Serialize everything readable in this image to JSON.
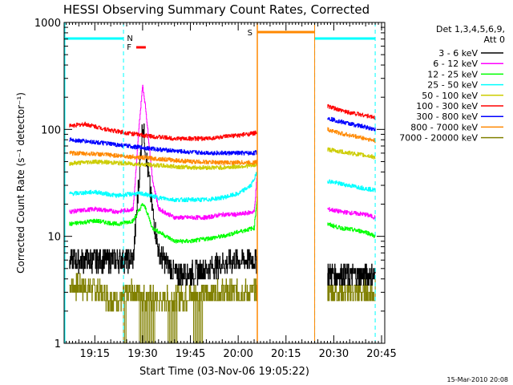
{
  "chart_data": {
    "type": "line",
    "title": "HESSI Observing Summary Count Rates, Corrected",
    "xlabel": "Start Time (03-Nov-06 19:05:22)",
    "ylabel": "Corrected Count Rate (s⁻¹ detector⁻¹)",
    "footer": "15-Mar-2010 20:08",
    "y_scale": "log",
    "ylim": [
      1,
      1000
    ],
    "xlim": [
      "19:05:22",
      "20:46:00"
    ],
    "x_ticks": [
      "19:15",
      "19:30",
      "19:45",
      "20:00",
      "20:15",
      "20:30",
      "20:45"
    ],
    "y_ticks": [
      "1",
      "10",
      "100",
      "1000"
    ],
    "legend": {
      "title_line1": "Det 1,3,4,5,6,9,",
      "title_line2": "Att 0",
      "placement": "right"
    },
    "series": [
      {
        "name": "3 - 6 keV",
        "color": "#000000",
        "segments": [
          {
            "x": [
              "19:07",
              "19:15",
              "19:22",
              "19:27",
              "19:29",
              "19:30",
              "19:31",
              "19:33",
              "19:35",
              "19:40",
              "19:45",
              "19:50",
              "19:55",
              "20:00",
              "20:06"
            ],
            "y": [
              6,
              6,
              6,
              6,
              40,
              115,
              60,
              18,
              7,
              4.5,
              4.5,
              5,
              5.5,
              6,
              6
            ]
          },
          {
            "x": [
              "20:28",
              "20:35",
              "20:40",
              "20:43"
            ],
            "y": [
              4.5,
              4.3,
              4.3,
              4.5
            ]
          }
        ]
      },
      {
        "name": "6 - 12 keV",
        "color": "#ff00ff",
        "segments": [
          {
            "x": [
              "19:07",
              "19:15",
              "19:22",
              "19:27",
              "19:29",
              "19:30",
              "19:31",
              "19:33",
              "19:35",
              "19:40",
              "19:45",
              "19:50",
              "19:55",
              "20:00",
              "20:05",
              "20:06"
            ],
            "y": [
              17,
              18,
              17,
              18,
              120,
              260,
              150,
              35,
              18,
              15,
              15,
              15,
              16,
              16,
              17,
              40
            ]
          },
          {
            "x": [
              "20:28",
              "20:32",
              "20:40",
              "20:43"
            ],
            "y": [
              18,
              17,
              16,
              15
            ]
          }
        ]
      },
      {
        "name": "12 - 25 keV",
        "color": "#00ff00",
        "segments": [
          {
            "x": [
              "19:07",
              "19:15",
              "19:22",
              "19:27",
              "19:30",
              "19:31",
              "19:33",
              "19:40",
              "19:45",
              "19:50",
              "19:55",
              "20:00",
              "20:05",
              "20:06"
            ],
            "y": [
              13,
              14,
              13,
              14,
              20,
              18,
              12,
              9,
              9,
              9.5,
              10,
              11,
              12,
              25
            ]
          },
          {
            "x": [
              "20:28",
              "20:32",
              "20:40",
              "20:43"
            ],
            "y": [
              13,
              12,
              11,
              10
            ]
          }
        ]
      },
      {
        "name": "25 - 50 keV",
        "color": "#00ffff",
        "segments": [
          {
            "x": [
              "19:07",
              "19:15",
              "19:22",
              "19:27",
              "19:30",
              "19:35",
              "19:40",
              "19:45",
              "19:50",
              "19:55",
              "20:00",
              "20:04",
              "20:06"
            ],
            "y": [
              25,
              26,
              24,
              25,
              25,
              23,
              22,
              22,
              22,
              23,
              25,
              30,
              40
            ]
          },
          {
            "x": [
              "20:28",
              "20:32",
              "20:40",
              "20:43"
            ],
            "y": [
              33,
              31,
              28,
              27
            ]
          }
        ]
      },
      {
        "name": "50 - 100 keV",
        "color": "#cccc00",
        "segments": [
          {
            "x": [
              "19:07",
              "19:15",
              "19:25",
              "19:35",
              "19:45",
              "19:55",
              "20:05",
              "20:06"
            ],
            "y": [
              48,
              50,
              48,
              46,
              44,
              44,
              46,
              48
            ]
          },
          {
            "x": [
              "20:28",
              "20:32",
              "20:40",
              "20:43"
            ],
            "y": [
              65,
              62,
              57,
              55
            ]
          }
        ]
      },
      {
        "name": "100 - 300 keV",
        "color": "#ff0000",
        "segments": [
          {
            "x": [
              "19:07",
              "19:12",
              "19:20",
              "19:30",
              "19:40",
              "19:50",
              "20:00",
              "20:05",
              "20:06"
            ],
            "y": [
              108,
              112,
              98,
              88,
              82,
              82,
              88,
              92,
              95
            ]
          },
          {
            "x": [
              "20:28",
              "20:32",
              "20:40",
              "20:43"
            ],
            "y": [
              165,
              150,
              135,
              128
            ]
          }
        ]
      },
      {
        "name": "300 - 800 keV",
        "color": "#0000ff",
        "segments": [
          {
            "x": [
              "19:07",
              "19:15",
              "19:25",
              "19:35",
              "19:45",
              "19:55",
              "20:05",
              "20:06"
            ],
            "y": [
              80,
              76,
              70,
              65,
              61,
              60,
              60,
              62
            ]
          },
          {
            "x": [
              "20:28",
              "20:32",
              "20:40",
              "20:43"
            ],
            "y": [
              128,
              118,
              105,
              100
            ]
          }
        ]
      },
      {
        "name": "800 - 7000 keV",
        "color": "#ff8800",
        "segments": [
          {
            "x": [
              "19:07",
              "19:15",
              "19:25",
              "19:35",
              "19:45",
              "19:55",
              "20:05",
              "20:06"
            ],
            "y": [
              60,
              59,
              56,
              53,
              50,
              49,
              49,
              50
            ]
          },
          {
            "x": [
              "20:28",
              "20:32",
              "20:40",
              "20:43"
            ],
            "y": [
              100,
              92,
              82,
              78
            ]
          }
        ]
      },
      {
        "name": "7000 - 20000 keV",
        "color": "#808000",
        "segments": [
          {
            "x": [
              "19:07",
              "19:15",
              "19:22",
              "19:27",
              "19:35",
              "19:45",
              "19:55",
              "20:00",
              "20:06"
            ],
            "y": [
              3.5,
              3.2,
              2.5,
              3,
              2.5,
              2.8,
              3,
              3,
              3
            ]
          },
          {
            "x": [
              "20:28",
              "20:35",
              "20:43"
            ],
            "y": [
              3,
              3,
              3
            ]
          }
        ]
      }
    ],
    "annotations": {
      "N_label": "N",
      "F_label": "F",
      "S_label": "S",
      "night_intervals": [
        [
          "19:05:22",
          "19:24:00"
        ],
        [
          "20:24:00",
          "20:43:00"
        ]
      ],
      "saa_interval": [
        "20:06:00",
        "20:24:00"
      ],
      "flare_interval": [
        "19:28:00",
        "19:31:00"
      ],
      "night_color": "#00ffff",
      "saa_color": "#ff8800",
      "flare_color": "#ff0000"
    }
  }
}
